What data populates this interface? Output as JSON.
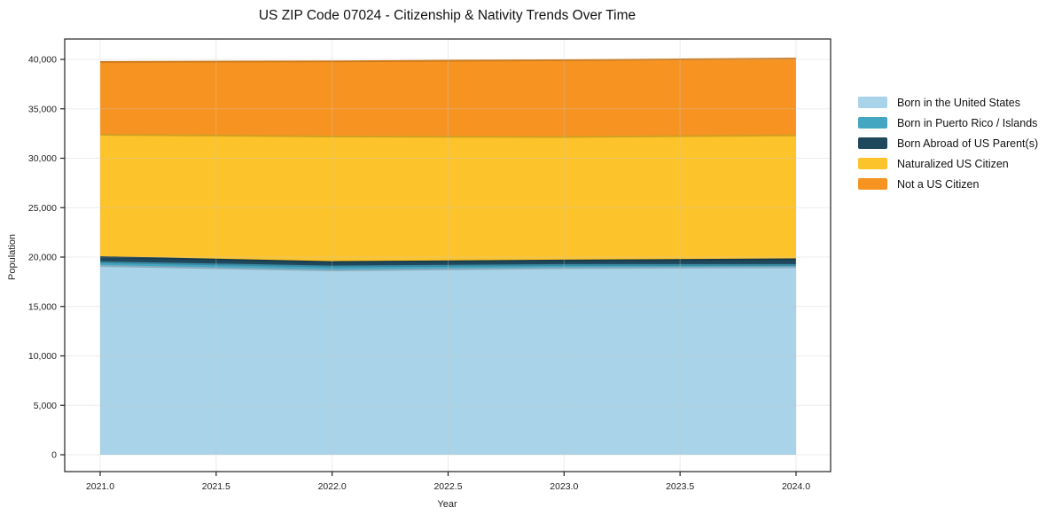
{
  "title": "US ZIP Code 07024 - Citizenship & Nativity Trends Over Time",
  "chart_data": {
    "type": "area",
    "stacked": true,
    "title": "US ZIP Code 07024 - Citizenship & Nativity Trends Over Time",
    "xlabel": "Year",
    "ylabel": "Population",
    "x": [
      2021,
      2022,
      2023,
      2024
    ],
    "series": [
      {
        "name": "Born in the United States",
        "color": "#A8D3E8",
        "values": [
          19100,
          18650,
          18880,
          18970
        ]
      },
      {
        "name": "Born in Puerto Rico / Islands",
        "color": "#45A6C2",
        "values": [
          370,
          400,
          320,
          230
        ]
      },
      {
        "name": "Born Abroad of US Parent(s)",
        "color": "#1F485C",
        "values": [
          530,
          450,
          450,
          580
        ]
      },
      {
        "name": "Naturalized US Citizen",
        "color": "#FDC32A",
        "values": [
          12380,
          12700,
          12500,
          12530
        ]
      },
      {
        "name": "Not a US Citizen",
        "color": "#F79421",
        "values": [
          7360,
          7600,
          7770,
          7770
        ]
      }
    ],
    "xlim": [
      2021,
      2024
    ],
    "ylim": [
      0,
      40000
    ],
    "xtick_values": [
      2021,
      2021.5,
      2022,
      2022.5,
      2023,
      2023.5,
      2024
    ],
    "xtick_labels": [
      "2021.0",
      "2021.5",
      "2022.0",
      "2022.5",
      "2023.0",
      "2023.5",
      "2024.0"
    ],
    "ytick_values": [
      0,
      5000,
      10000,
      15000,
      20000,
      25000,
      30000,
      35000,
      40000
    ],
    "ytick_labels": [
      "0",
      "5,000",
      "10,000",
      "15,000",
      "20,000",
      "25,000",
      "30,000",
      "35,000",
      "40,000"
    ],
    "grid": true,
    "legend_position": "right",
    "background_color": "#ffffff",
    "gridline_color": "#c8c8c8",
    "spine_color": "#222222"
  }
}
